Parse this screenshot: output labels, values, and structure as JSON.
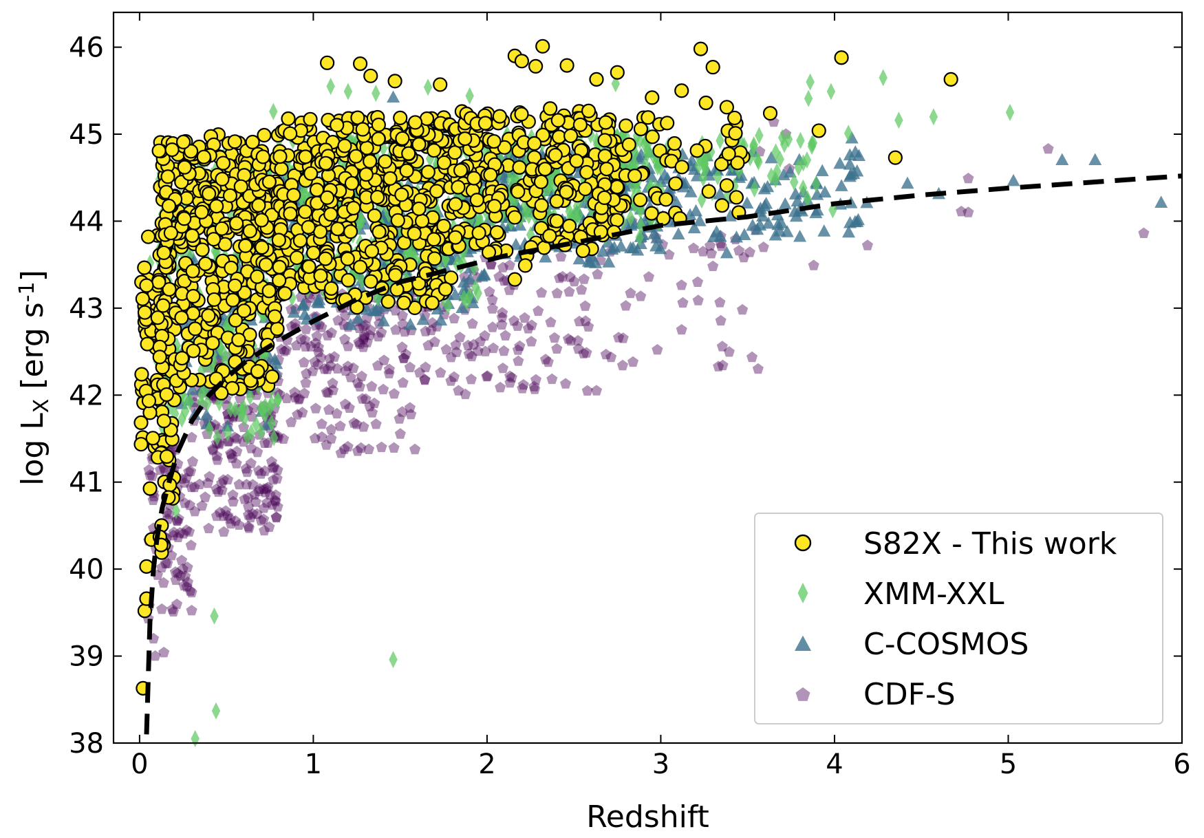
{
  "chart_data": {
    "type": "scatter",
    "title": "",
    "xlabel": "Redshift",
    "ylabel": "log L_X [erg s^-1]",
    "xlim": [
      -0.15,
      6.0
    ],
    "ylim": [
      38.0,
      46.4
    ],
    "x_ticks": [
      0,
      1,
      2,
      3,
      4,
      5,
      6
    ],
    "y_ticks": [
      38,
      39,
      40,
      41,
      42,
      43,
      44,
      45,
      46
    ],
    "grid": false,
    "legend_position": "bottom-right",
    "series": [
      {
        "name": "S82X - This work",
        "marker": "circle",
        "color": "#fde725",
        "edge_color": "#000000",
        "clusters": [
          {
            "x_range": [
              0.0,
              0.2
            ],
            "y_range": [
              40.0,
              43.5
            ],
            "count": 80
          },
          {
            "x_range": [
              0.1,
              0.8
            ],
            "y_range": [
              42.0,
              45.0
            ],
            "count": 420
          },
          {
            "x_range": [
              0.8,
              1.8
            ],
            "y_range": [
              43.0,
              45.2
            ],
            "count": 420
          },
          {
            "x_range": [
              1.8,
              2.8
            ],
            "y_range": [
              43.6,
              45.3
            ],
            "count": 260
          },
          {
            "x_range": [
              2.8,
              3.5
            ],
            "y_range": [
              44.0,
              45.3
            ],
            "count": 40
          }
        ],
        "points": [
          {
            "x": 0.02,
            "y": 38.63
          },
          {
            "x": 0.03,
            "y": 39.52
          },
          {
            "x": 0.04,
            "y": 39.66
          },
          {
            "x": 0.04,
            "y": 40.03
          },
          {
            "x": 0.03,
            "y": 42.95
          },
          {
            "x": 0.04,
            "y": 43.26
          },
          {
            "x": 0.05,
            "y": 43.82
          },
          {
            "x": 1.08,
            "y": 45.82
          },
          {
            "x": 1.27,
            "y": 45.81
          },
          {
            "x": 1.33,
            "y": 45.67
          },
          {
            "x": 1.47,
            "y": 45.61
          },
          {
            "x": 1.73,
            "y": 45.57
          },
          {
            "x": 2.16,
            "y": 45.9
          },
          {
            "x": 2.2,
            "y": 45.84
          },
          {
            "x": 2.32,
            "y": 46.01
          },
          {
            "x": 2.28,
            "y": 45.78
          },
          {
            "x": 2.46,
            "y": 45.79
          },
          {
            "x": 2.63,
            "y": 45.63
          },
          {
            "x": 2.75,
            "y": 45.71
          },
          {
            "x": 2.95,
            "y": 45.42
          },
          {
            "x": 3.12,
            "y": 45.5
          },
          {
            "x": 3.23,
            "y": 45.98
          },
          {
            "x": 3.3,
            "y": 45.77
          },
          {
            "x": 3.26,
            "y": 45.36
          },
          {
            "x": 3.38,
            "y": 45.31
          },
          {
            "x": 3.43,
            "y": 45.01
          },
          {
            "x": 3.63,
            "y": 45.24
          },
          {
            "x": 3.91,
            "y": 45.04
          },
          {
            "x": 4.04,
            "y": 45.88
          },
          {
            "x": 4.35,
            "y": 44.73
          },
          {
            "x": 4.67,
            "y": 45.63
          },
          {
            "x": 3.38,
            "y": 44.41
          },
          {
            "x": 3.11,
            "y": 44.03
          },
          {
            "x": 2.22,
            "y": 43.49
          },
          {
            "x": 2.16,
            "y": 43.33
          }
        ]
      },
      {
        "name": "XMM-XXL",
        "marker": "diamond",
        "color": "#5ec962",
        "clusters": [
          {
            "x_range": [
              0.1,
              0.8
            ],
            "y_range": [
              41.5,
              44.8
            ],
            "count": 300
          },
          {
            "x_range": [
              0.8,
              2.0
            ],
            "y_range": [
              43.0,
              45.0
            ],
            "count": 350
          },
          {
            "x_range": [
              2.0,
              3.0
            ],
            "y_range": [
              43.8,
              45.0
            ],
            "count": 250
          },
          {
            "x_range": [
              3.0,
              3.9
            ],
            "y_range": [
              44.2,
              45.0
            ],
            "count": 50
          }
        ],
        "points": [
          {
            "x": 0.43,
            "y": 39.46
          },
          {
            "x": 0.44,
            "y": 38.37
          },
          {
            "x": 0.32,
            "y": 38.05
          },
          {
            "x": 1.46,
            "y": 38.96
          },
          {
            "x": 0.21,
            "y": 40.67
          },
          {
            "x": 0.06,
            "y": 43.52
          },
          {
            "x": 0.3,
            "y": 44.52
          },
          {
            "x": 0.77,
            "y": 45.26
          },
          {
            "x": 1.1,
            "y": 45.55
          },
          {
            "x": 1.2,
            "y": 45.49
          },
          {
            "x": 1.36,
            "y": 45.47
          },
          {
            "x": 1.66,
            "y": 45.54
          },
          {
            "x": 1.9,
            "y": 45.44
          },
          {
            "x": 2.74,
            "y": 45.58
          },
          {
            "x": 3.86,
            "y": 45.6
          },
          {
            "x": 3.85,
            "y": 45.41
          },
          {
            "x": 3.98,
            "y": 45.49
          },
          {
            "x": 4.28,
            "y": 45.65
          },
          {
            "x": 4.37,
            "y": 45.16
          },
          {
            "x": 4.57,
            "y": 45.2
          },
          {
            "x": 5.01,
            "y": 45.25
          },
          {
            "x": 3.7,
            "y": 44.96
          },
          {
            "x": 3.66,
            "y": 44.48
          },
          {
            "x": 3.87,
            "y": 44.89
          },
          {
            "x": 4.08,
            "y": 45.01
          },
          {
            "x": 3.99,
            "y": 44.13
          }
        ]
      },
      {
        "name": "C-COSMOS",
        "marker": "triangle",
        "color": "#3b728e",
        "clusters": [
          {
            "x_range": [
              0.2,
              0.8
            ],
            "y_range": [
              41.6,
              43.6
            ],
            "count": 80
          },
          {
            "x_range": [
              0.8,
              2.0
            ],
            "y_range": [
              42.8,
              44.5
            ],
            "count": 300
          },
          {
            "x_range": [
              2.0,
              3.0
            ],
            "y_range": [
              43.5,
              44.8
            ],
            "count": 250
          },
          {
            "x_range": [
              3.0,
              4.2
            ],
            "y_range": [
              43.8,
              44.8
            ],
            "count": 110
          }
        ],
        "points": [
          {
            "x": 4.1,
            "y": 44.95
          },
          {
            "x": 4.12,
            "y": 44.79
          },
          {
            "x": 4.13,
            "y": 44.57
          },
          {
            "x": 4.42,
            "y": 44.43
          },
          {
            "x": 4.13,
            "y": 43.99
          },
          {
            "x": 5.03,
            "y": 44.46
          },
          {
            "x": 5.31,
            "y": 44.7
          },
          {
            "x": 5.5,
            "y": 44.7
          },
          {
            "x": 5.88,
            "y": 44.21
          },
          {
            "x": 4.6,
            "y": 44.31
          },
          {
            "x": 3.9,
            "y": 44.3
          },
          {
            "x": 1.46,
            "y": 45.42
          },
          {
            "x": 3.78,
            "y": 44.05
          },
          {
            "x": 3.62,
            "y": 43.97
          },
          {
            "x": 3.38,
            "y": 43.63
          }
        ]
      },
      {
        "name": "CDF-S",
        "marker": "pentagon",
        "color": "#440154",
        "clusters": [
          {
            "x_range": [
              0.05,
              0.3
            ],
            "y_range": [
              39.5,
              41.5
            ],
            "count": 90
          },
          {
            "x_range": [
              0.3,
              0.8
            ],
            "y_range": [
              40.4,
              42.5
            ],
            "count": 200
          },
          {
            "x_range": [
              0.8,
              1.6
            ],
            "y_range": [
              41.3,
              43.2
            ],
            "count": 170
          },
          {
            "x_range": [
              1.6,
              2.6
            ],
            "y_range": [
              42.0,
              43.6
            ],
            "count": 120
          },
          {
            "x_range": [
              2.6,
              3.6
            ],
            "y_range": [
              42.3,
              44.0
            ],
            "count": 40
          }
        ],
        "points": [
          {
            "x": 0.05,
            "y": 39.43
          },
          {
            "x": 0.08,
            "y": 39.2
          },
          {
            "x": 0.09,
            "y": 39.0
          },
          {
            "x": 0.14,
            "y": 39.04
          },
          {
            "x": 0.3,
            "y": 39.73
          },
          {
            "x": 0.63,
            "y": 40.47
          },
          {
            "x": 0.78,
            "y": 40.79
          },
          {
            "x": 2.63,
            "y": 42.05
          },
          {
            "x": 2.84,
            "y": 42.38
          },
          {
            "x": 2.98,
            "y": 42.52
          },
          {
            "x": 3.56,
            "y": 42.3
          },
          {
            "x": 3.12,
            "y": 42.75
          },
          {
            "x": 3.47,
            "y": 42.98
          },
          {
            "x": 3.45,
            "y": 43.66
          },
          {
            "x": 3.3,
            "y": 43.48
          },
          {
            "x": 3.88,
            "y": 43.49
          },
          {
            "x": 4.19,
            "y": 43.72
          },
          {
            "x": 4.73,
            "y": 44.11
          },
          {
            "x": 4.77,
            "y": 44.1
          },
          {
            "x": 4.77,
            "y": 44.49
          },
          {
            "x": 5.23,
            "y": 44.83
          },
          {
            "x": 5.78,
            "y": 43.86
          },
          {
            "x": 3.74,
            "y": 44.6
          },
          {
            "x": 3.72,
            "y": 45.0
          },
          {
            "x": 3.65,
            "y": 45.14
          },
          {
            "x": 3.57,
            "y": 44.8
          }
        ]
      },
      {
        "name": "",
        "marker": "line",
        "style": "dashed",
        "color": "#000000",
        "x": [
          0.04,
          0.06,
          0.08,
          0.1,
          0.13,
          0.17,
          0.22,
          0.3,
          0.4,
          0.5,
          0.62,
          0.78,
          1.0,
          1.25,
          1.5,
          1.8,
          2.1,
          2.5,
          3.0,
          3.5,
          4.0,
          4.5,
          5.0,
          5.5,
          6.0
        ],
        "y": [
          38.1,
          39.4,
          40.0,
          40.35,
          40.7,
          41.0,
          41.35,
          41.7,
          42.0,
          42.2,
          42.4,
          42.6,
          42.85,
          43.1,
          43.3,
          43.45,
          43.6,
          43.75,
          43.95,
          44.05,
          44.2,
          44.3,
          44.38,
          44.45,
          44.52
        ]
      }
    ]
  }
}
